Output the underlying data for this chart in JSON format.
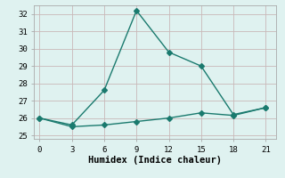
{
  "line1_x": [
    0,
    3,
    6,
    9,
    12,
    15,
    18,
    21
  ],
  "line1_y": [
    26.0,
    25.6,
    27.6,
    32.2,
    29.8,
    29.0,
    26.2,
    26.6
  ],
  "line2_x": [
    0,
    3,
    6,
    9,
    12,
    15,
    18,
    21
  ],
  "line2_y": [
    26.0,
    25.5,
    25.6,
    25.8,
    26.0,
    26.3,
    26.15,
    26.6
  ],
  "line_color": "#1a7a6e",
  "background_color": "#dff2f0",
  "grid_color": "#c9b8b8",
  "xlabel": "Humidex (Indice chaleur)",
  "xlim": [
    -0.5,
    22
  ],
  "ylim": [
    24.8,
    32.5
  ],
  "xticks": [
    0,
    3,
    6,
    9,
    12,
    15,
    18,
    21
  ],
  "yticks": [
    25,
    26,
    27,
    28,
    29,
    30,
    31,
    32
  ],
  "marker": "D",
  "linewidth": 1.0,
  "markersize": 3,
  "font_family": "monospace",
  "tick_fontsize": 6.5,
  "xlabel_fontsize": 7.5
}
